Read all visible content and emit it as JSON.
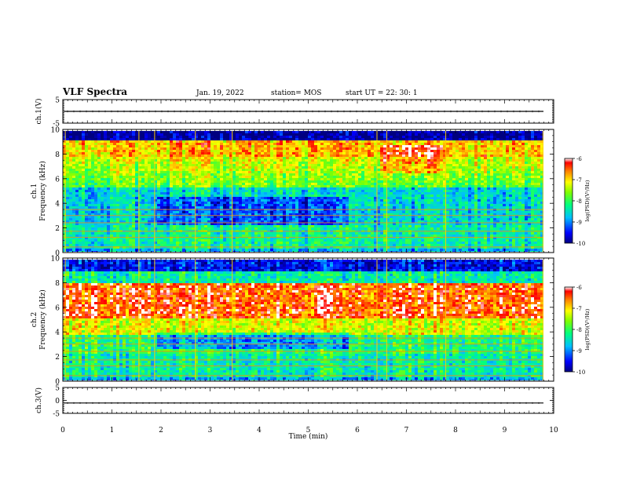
{
  "header": {
    "title": "VLF Spectra",
    "date": "Jan. 19, 2022",
    "station": "station= MOS",
    "start_ut": "start  UT =   22: 30: 1"
  },
  "chart_data": [
    {
      "type": "line",
      "panel": "ch1-voltage",
      "ylabel": "ch.1(V)",
      "ylim": [
        -5,
        5
      ],
      "yticks": [
        "5",
        "-5"
      ],
      "xlim": [
        0,
        10
      ],
      "series_level_V": 0
    },
    {
      "type": "heatmap",
      "panel": "ch1-spectrogram",
      "ylabel": "ch.1\nFrequency (kHz)",
      "ylim": [
        0,
        10
      ],
      "yticks": [
        "0",
        "2",
        "4",
        "6",
        "8",
        "10"
      ],
      "xlim": [
        0,
        10
      ],
      "colorbar": {
        "label": "log(PSD)(V²/Hz)",
        "ticks": [
          "-6",
          "-7",
          "-8",
          "-9",
          "-10"
        ],
        "range": [
          -10,
          -6
        ]
      }
    },
    {
      "type": "heatmap",
      "panel": "ch2-spectrogram",
      "ylabel": "ch.2\nFrequency (kHz)",
      "ylim": [
        0,
        10
      ],
      "yticks": [
        "0",
        "2",
        "4",
        "6",
        "8",
        "10"
      ],
      "xlim": [
        0,
        10
      ],
      "colorbar": {
        "label": "log(PSD)(V²/Hz)",
        "ticks": [
          "-6",
          "-7",
          "-8",
          "-9",
          "-10"
        ],
        "range": [
          -10,
          -6
        ]
      }
    },
    {
      "type": "line",
      "panel": "ch3-voltage",
      "ylabel": "ch.3(V)",
      "ylim": [
        -5,
        5
      ],
      "yticks": [
        "5",
        "0",
        "-5"
      ],
      "xlim": [
        0,
        10
      ],
      "xlabel": "Time (min)",
      "xticks": [
        "0",
        "1",
        "2",
        "3",
        "4",
        "5",
        "6",
        "7",
        "8",
        "9",
        "10"
      ],
      "series_level_V": -1
    }
  ]
}
